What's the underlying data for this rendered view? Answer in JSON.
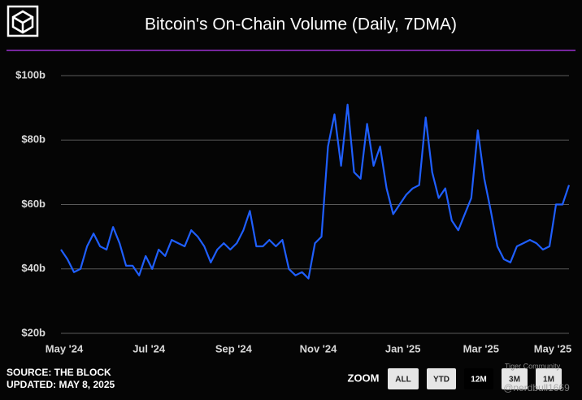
{
  "chart_data": {
    "type": "line",
    "title": "Bitcoin's On-Chain Volume (Daily, 7DMA)",
    "categories": [
      "May '24",
      null,
      null,
      null,
      null,
      null,
      null,
      null,
      null,
      null,
      null,
      null,
      null,
      "Jul '24",
      null,
      null,
      null,
      null,
      null,
      null,
      null,
      null,
      null,
      null,
      null,
      null,
      "Sep '24",
      null,
      null,
      null,
      null,
      null,
      null,
      null,
      null,
      null,
      null,
      null,
      null,
      "Nov '24",
      null,
      null,
      null,
      null,
      null,
      null,
      null,
      null,
      null,
      null,
      null,
      null,
      "Jan '25",
      null,
      null,
      null,
      null,
      null,
      null,
      null,
      null,
      null,
      null,
      null,
      "Mar '25",
      null,
      null,
      null,
      null,
      null,
      null,
      null,
      null,
      null,
      null,
      "May '25",
      null,
      null,
      null
    ],
    "series": [
      {
        "name": "On-Chain Volume",
        "color": "#1f5fff",
        "values": [
          46,
          43,
          39,
          40,
          47,
          51,
          47,
          46,
          53,
          48,
          41,
          41,
          38,
          44,
          40,
          46,
          44,
          49,
          48,
          47,
          52,
          50,
          47,
          42,
          46,
          48,
          46,
          48,
          52,
          58,
          47,
          47,
          49,
          47,
          49,
          40,
          38,
          39,
          37,
          48,
          50,
          78,
          88,
          72,
          91,
          70,
          68,
          85,
          72,
          78,
          65,
          57,
          60,
          63,
          65,
          66,
          87,
          70,
          62,
          65,
          55,
          52,
          57,
          62,
          83,
          68,
          58,
          47,
          43,
          42,
          47,
          48,
          49,
          48,
          46,
          47,
          60,
          60,
          66
        ]
      }
    ],
    "ylim": [
      20,
      100
    ],
    "yticks": [
      {
        "value": 20,
        "label": "$20b"
      },
      {
        "value": 40,
        "label": "$40b"
      },
      {
        "value": 60,
        "label": "$60b"
      },
      {
        "value": 80,
        "label": "$80b"
      },
      {
        "value": 100,
        "label": "$100b"
      }
    ],
    "grid": true,
    "source": "SOURCE: THE BLOCK",
    "updated": "UPDATED: MAY 8, 2025",
    "zoom_label": "ZOOM",
    "zoom_options": [
      "ALL",
      "YTD",
      "12M",
      "3M",
      "1M"
    ],
    "zoom_selected": "12M",
    "watermark": [
      "Tiger Community",
      "@nerdbull1669"
    ]
  }
}
